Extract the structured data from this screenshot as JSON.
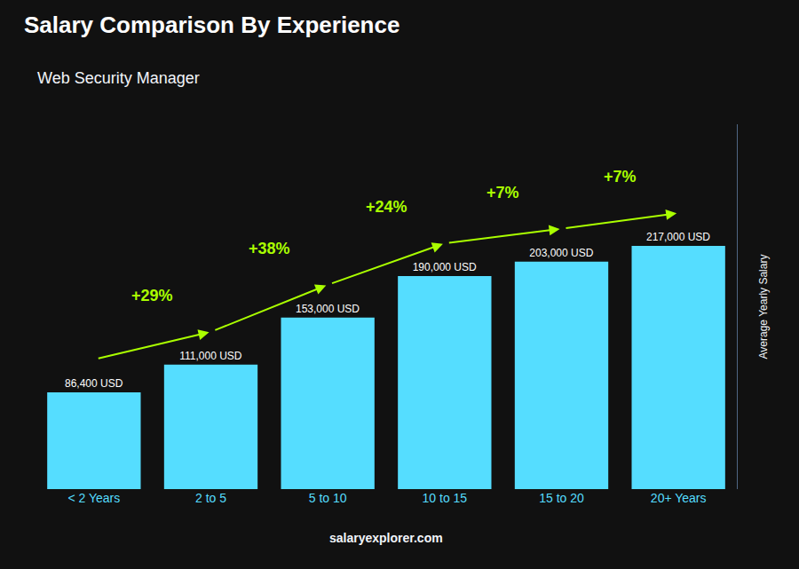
{
  "chart_data": {
    "type": "bar",
    "title": "Salary Comparison By Experience",
    "subtitle": "Web Security Manager",
    "categories": [
      "< 2 Years",
      "2 to 5",
      "5 to 10",
      "10 to 15",
      "15 to 20",
      "20+ Years"
    ],
    "values": [
      86400,
      111000,
      153000,
      190000,
      203000,
      217000
    ],
    "value_labels": [
      "86,400 USD",
      "111,000 USD",
      "153,000 USD",
      "190,000 USD",
      "203,000 USD",
      "217,000 USD"
    ],
    "data_labels": true,
    "color": "#55ddff",
    "ylabel": "Average Yearly Salary",
    "ylim": [
      0,
      325500
    ],
    "tick_labels": "x",
    "grid": false,
    "annotations": [
      {
        "from": "< 2 Years",
        "to": "2 to 5",
        "text": "+29%",
        "color": "#aaff00"
      },
      {
        "from": "2 to 5",
        "to": "5 to 10",
        "text": "+38%",
        "color": "#aaff00"
      },
      {
        "from": "5 to 10",
        "to": "10 to 15",
        "text": "+24%",
        "color": "#aaff00"
      },
      {
        "from": "10 to 15",
        "to": "15 to 20",
        "text": "+7%",
        "color": "#aaff00"
      },
      {
        "from": "15 to 20",
        "to": "20+ Years",
        "text": "+7%",
        "color": "#aaff00"
      }
    ],
    "footer": "salaryexplorer.com"
  }
}
